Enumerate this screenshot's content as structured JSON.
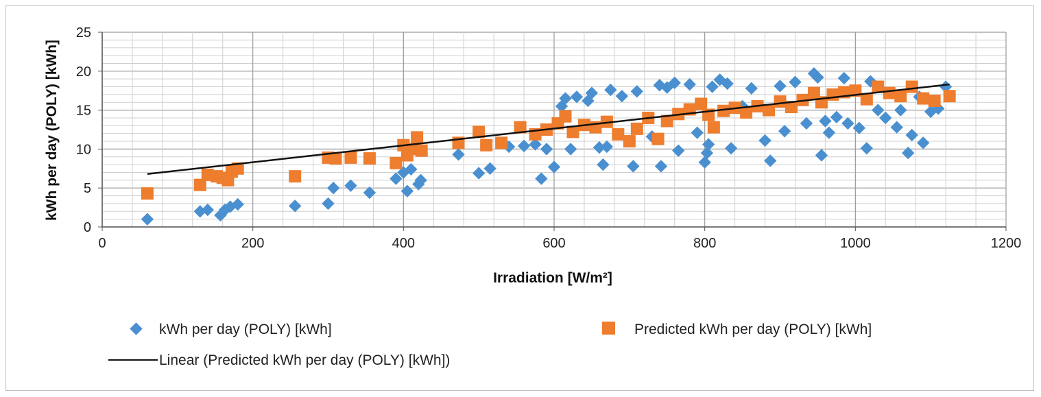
{
  "chart_data": {
    "type": "scatter",
    "xlabel": "Irradiation [W/m²]",
    "ylabel": "kWh per day (POLY) [kWh]",
    "xlim": [
      0,
      1200
    ],
    "ylim": [
      0,
      25
    ],
    "x_ticks": [
      "0",
      "200",
      "400",
      "600",
      "800",
      "1000",
      "1200"
    ],
    "y_ticks": [
      "0",
      "5",
      "10",
      "15",
      "20",
      "25"
    ],
    "grid": "major and minor",
    "legend_position": "bottom",
    "series": [
      {
        "name": "kWh per day (POLY) [kWh]",
        "marker": "diamond",
        "color": "#4a90d0",
        "points": [
          [
            60,
            1.0
          ],
          [
            130,
            2.0
          ],
          [
            140,
            2.2
          ],
          [
            157,
            1.5
          ],
          [
            163,
            2.2
          ],
          [
            170,
            2.6
          ],
          [
            180,
            2.9
          ],
          [
            256,
            2.7
          ],
          [
            300,
            3.0
          ],
          [
            307,
            5.0
          ],
          [
            330,
            5.3
          ],
          [
            355,
            4.4
          ],
          [
            390,
            6.2
          ],
          [
            400,
            7.0
          ],
          [
            405,
            4.6
          ],
          [
            410,
            7.4
          ],
          [
            420,
            5.5
          ],
          [
            423,
            6.0
          ],
          [
            473,
            9.3
          ],
          [
            500,
            6.9
          ],
          [
            515,
            7.5
          ],
          [
            540,
            10.3
          ],
          [
            560,
            10.4
          ],
          [
            575,
            10.6
          ],
          [
            583,
            6.2
          ],
          [
            590,
            10.0
          ],
          [
            600,
            7.7
          ],
          [
            610,
            15.5
          ],
          [
            615,
            16.5
          ],
          [
            622,
            10.0
          ],
          [
            630,
            16.7
          ],
          [
            645,
            16.2
          ],
          [
            650,
            17.2
          ],
          [
            660,
            10.2
          ],
          [
            665,
            8.0
          ],
          [
            670,
            10.3
          ],
          [
            675,
            17.6
          ],
          [
            690,
            16.8
          ],
          [
            705,
            7.8
          ],
          [
            710,
            17.4
          ],
          [
            730,
            11.6
          ],
          [
            740,
            18.2
          ],
          [
            742,
            7.8
          ],
          [
            750,
            17.9
          ],
          [
            760,
            18.5
          ],
          [
            765,
            9.8
          ],
          [
            780,
            18.3
          ],
          [
            790,
            12.1
          ],
          [
            800,
            8.3
          ],
          [
            803,
            9.5
          ],
          [
            805,
            10.6
          ],
          [
            810,
            18.0
          ],
          [
            820,
            18.9
          ],
          [
            830,
            18.4
          ],
          [
            835,
            10.1
          ],
          [
            850,
            15.5
          ],
          [
            862,
            17.8
          ],
          [
            880,
            11.1
          ],
          [
            887,
            8.5
          ],
          [
            900,
            18.1
          ],
          [
            906,
            12.3
          ],
          [
            920,
            18.6
          ],
          [
            935,
            13.3
          ],
          [
            945,
            19.7
          ],
          [
            950,
            19.2
          ],
          [
            955,
            9.2
          ],
          [
            960,
            13.6
          ],
          [
            965,
            12.1
          ],
          [
            975,
            14.1
          ],
          [
            985,
            19.1
          ],
          [
            990,
            13.3
          ],
          [
            1005,
            12.7
          ],
          [
            1015,
            10.1
          ],
          [
            1020,
            18.7
          ],
          [
            1030,
            15.0
          ],
          [
            1040,
            14.0
          ],
          [
            1055,
            12.8
          ],
          [
            1060,
            15.0
          ],
          [
            1070,
            9.5
          ],
          [
            1075,
            11.8
          ],
          [
            1085,
            16.7
          ],
          [
            1090,
            10.8
          ],
          [
            1100,
            14.8
          ],
          [
            1110,
            15.2
          ],
          [
            1120,
            18.0
          ]
        ]
      },
      {
        "name": "Predicted kWh per day (POLY) [kWh]",
        "marker": "square",
        "color": "#ee7d2e",
        "points": [
          [
            60,
            4.3
          ],
          [
            130,
            5.4
          ],
          [
            140,
            6.7
          ],
          [
            152,
            6.5
          ],
          [
            160,
            6.3
          ],
          [
            167,
            6.0
          ],
          [
            172,
            7.1
          ],
          [
            180,
            7.5
          ],
          [
            256,
            6.5
          ],
          [
            300,
            8.9
          ],
          [
            310,
            8.8
          ],
          [
            330,
            8.9
          ],
          [
            355,
            8.8
          ],
          [
            390,
            8.2
          ],
          [
            400,
            10.5
          ],
          [
            405,
            9.2
          ],
          [
            412,
            10.0
          ],
          [
            418,
            11.5
          ],
          [
            424,
            9.8
          ],
          [
            473,
            10.8
          ],
          [
            500,
            12.2
          ],
          [
            510,
            10.5
          ],
          [
            530,
            10.8
          ],
          [
            555,
            12.8
          ],
          [
            575,
            11.9
          ],
          [
            590,
            12.5
          ],
          [
            605,
            13.3
          ],
          [
            615,
            14.2
          ],
          [
            625,
            12.2
          ],
          [
            640,
            13.1
          ],
          [
            655,
            12.8
          ],
          [
            670,
            13.5
          ],
          [
            685,
            11.9
          ],
          [
            700,
            11.0
          ],
          [
            710,
            12.6
          ],
          [
            725,
            14.0
          ],
          [
            738,
            11.3
          ],
          [
            750,
            13.6
          ],
          [
            765,
            14.5
          ],
          [
            780,
            15.1
          ],
          [
            795,
            15.8
          ],
          [
            805,
            14.4
          ],
          [
            812,
            12.8
          ],
          [
            825,
            14.9
          ],
          [
            840,
            15.3
          ],
          [
            855,
            14.7
          ],
          [
            870,
            15.5
          ],
          [
            885,
            15.0
          ],
          [
            900,
            16.1
          ],
          [
            915,
            15.4
          ],
          [
            930,
            16.3
          ],
          [
            945,
            17.2
          ],
          [
            955,
            16.0
          ],
          [
            970,
            17.0
          ],
          [
            985,
            17.3
          ],
          [
            1000,
            17.5
          ],
          [
            1015,
            16.4
          ],
          [
            1030,
            18.0
          ],
          [
            1045,
            17.2
          ],
          [
            1060,
            16.8
          ],
          [
            1075,
            18.0
          ],
          [
            1090,
            16.5
          ],
          [
            1105,
            16.2
          ],
          [
            1125,
            16.8
          ]
        ]
      }
    ],
    "trendline": {
      "name": "Linear (Predicted kWh per day (POLY) [kWh])",
      "type": "linear",
      "color": "#111111",
      "from": [
        60,
        6.8
      ],
      "to": [
        1125,
        18.3
      ]
    }
  }
}
